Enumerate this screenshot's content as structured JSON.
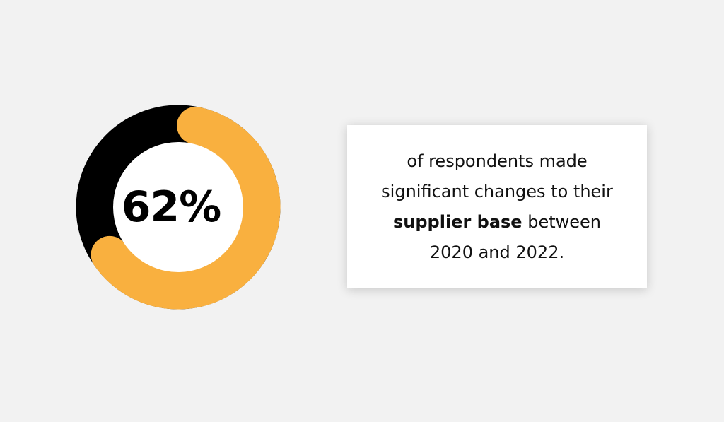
{
  "chart_data": {
    "type": "pie",
    "title": "",
    "value_label": "62%",
    "series": [
      {
        "values": [
          62,
          38
        ]
      }
    ],
    "colors": [
      "#f9b03f",
      "#000000"
    ]
  },
  "caption": {
    "line1": "of respondents made",
    "line2": "significant changes to their",
    "line3_bold": "supplier base",
    "line3_rest": " between",
    "line4": "2020 and 2022."
  },
  "colors": {
    "background": "#f2f2f2",
    "accent": "#f9b03f",
    "dark": "#000000",
    "card": "#ffffff"
  }
}
